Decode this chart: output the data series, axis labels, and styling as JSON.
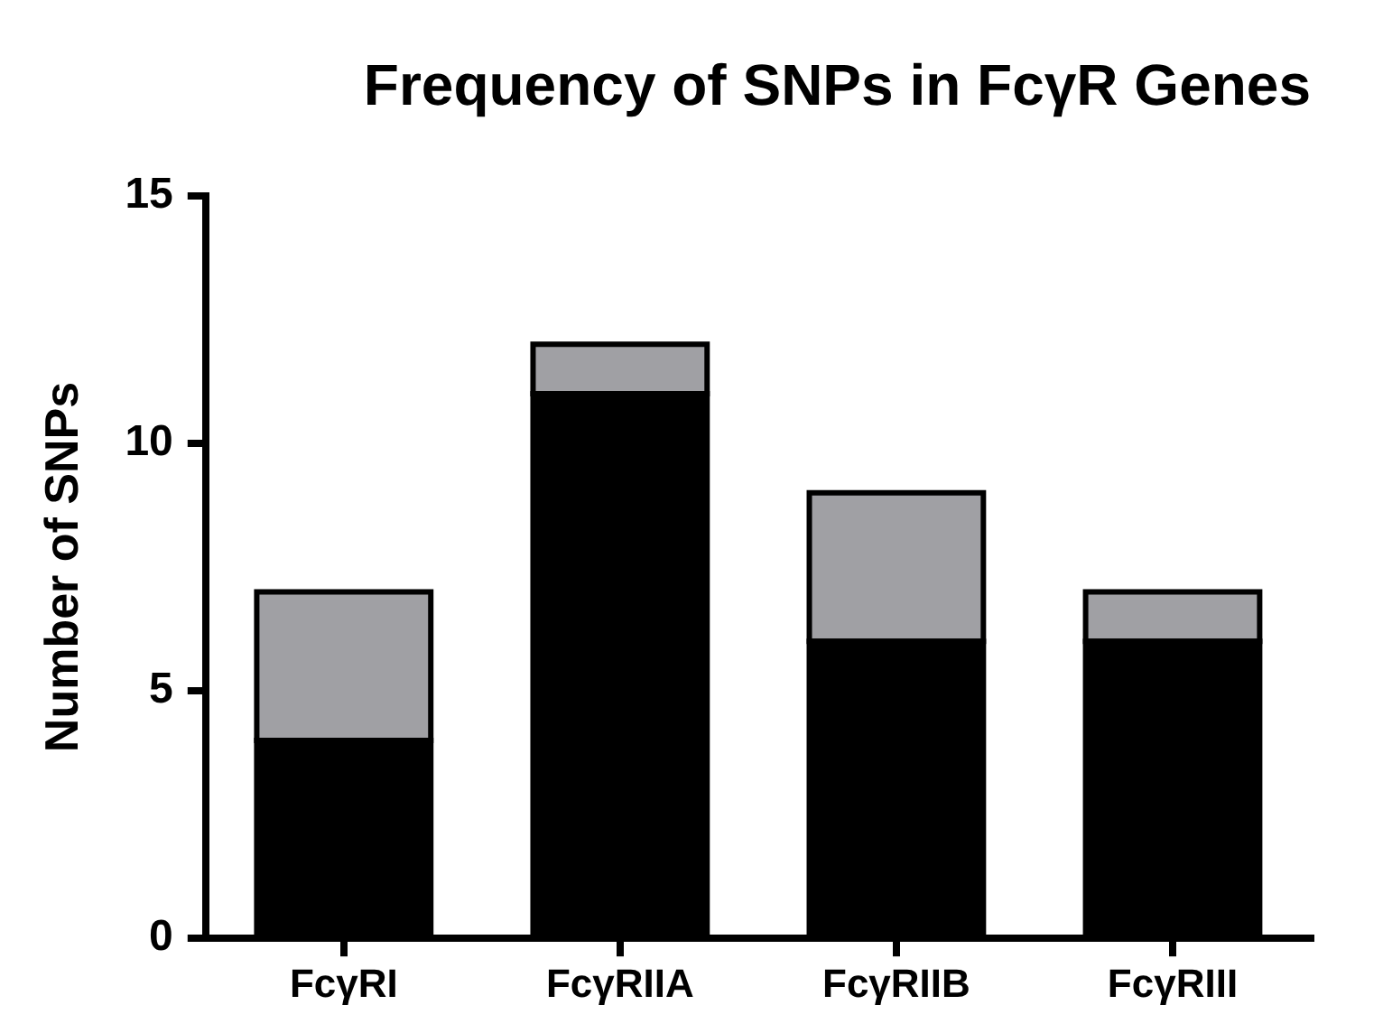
{
  "chart_data": {
    "type": "bar",
    "title": "Frequency of SNPs in FcγR Genes",
    "ylabel": "Number of SNPs",
    "stacked": true,
    "grid": false,
    "legend": false,
    "categories": [
      "FcγRI",
      "FcγRIIA",
      "FcγRIIB",
      "FcγRIII"
    ],
    "series": [
      {
        "color": "#000000",
        "values": [
          4,
          11,
          6,
          6
        ]
      },
      {
        "color": "#a0a0a4",
        "values": [
          3,
          1,
          3,
          1
        ]
      }
    ],
    "ylim": [
      0,
      15
    ],
    "yticks": [
      0,
      5,
      10,
      15
    ]
  }
}
